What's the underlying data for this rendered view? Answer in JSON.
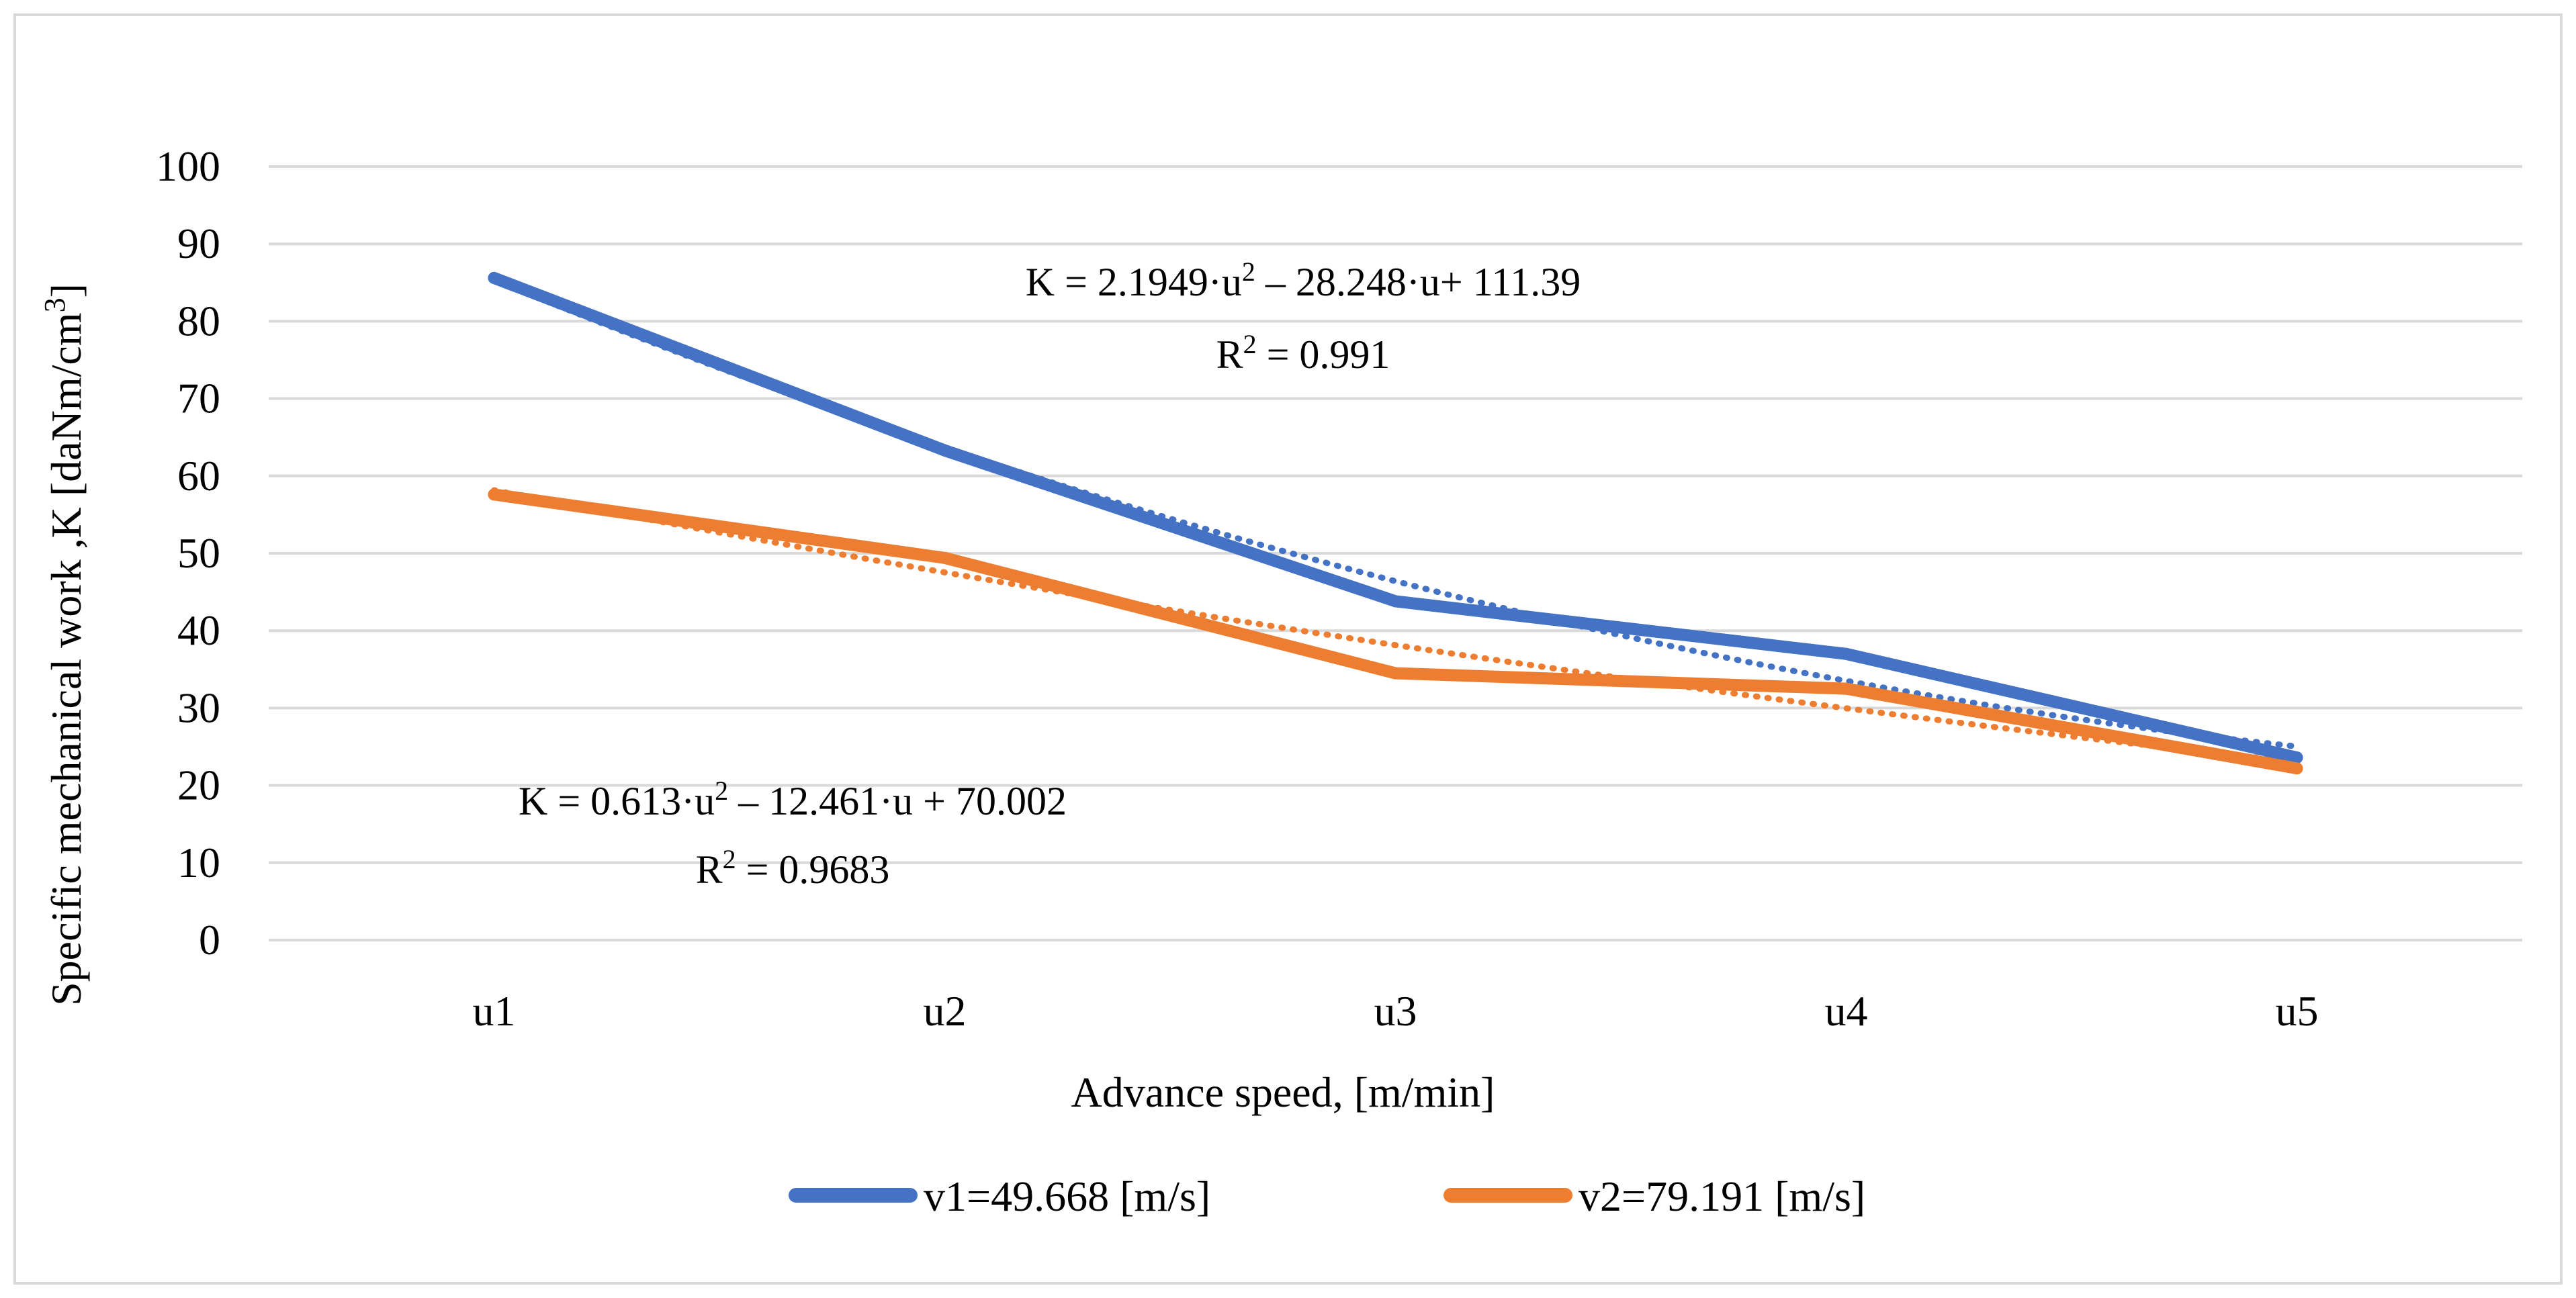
{
  "chart_data": {
    "type": "line",
    "categories": [
      "u1",
      "u2",
      "u3",
      "u4",
      "u5"
    ],
    "series": [
      {
        "name": "v1=49.668 [m/s]",
        "color": "#4472C4",
        "values": [
          85.6,
          63.3,
          43.8,
          37.0,
          23.6
        ],
        "trend": {
          "type": "polynomial",
          "order": 2,
          "coefficients": [
            2.1949,
            -28.248,
            111.39
          ],
          "r2": 0.991
        }
      },
      {
        "name": "v2=79.191 [m/s]",
        "color": "#ED7D31",
        "values": [
          57.6,
          49.4,
          34.5,
          32.5,
          22.2
        ],
        "trend": {
          "type": "polynomial",
          "order": 2,
          "coefficients": [
            0.613,
            -12.461,
            70.002
          ],
          "r2": 0.9683
        }
      }
    ],
    "xlabel": "Advance speed, [m/min]",
    "ylabel": "Specific mechanical work ,K [daNm/cm",
    "ylabel_sup": "3",
    "ylabel_end": "]",
    "ylim": [
      0,
      100
    ],
    "yticks": [
      0,
      10,
      20,
      30,
      40,
      50,
      60,
      70,
      80,
      90,
      100
    ],
    "grid": true,
    "legend_position": "bottom",
    "annotations": {
      "eq1": {
        "pre": "K = 2.1949·u",
        "sup": "2",
        "post": " – 28.248·u+ 111.39"
      },
      "r2_1": {
        "pre": "R",
        "sup": "2",
        "post": " = 0.991"
      },
      "eq2": {
        "pre": "K = 0.613·u",
        "sup": "2",
        "post": " – 12.461·u + 70.002"
      },
      "r2_2": {
        "pre": "R",
        "sup": "2",
        "post": " = 0.9683"
      }
    }
  },
  "colors": {
    "grid": "#d9d9d9",
    "border": "#d9d9d9"
  }
}
